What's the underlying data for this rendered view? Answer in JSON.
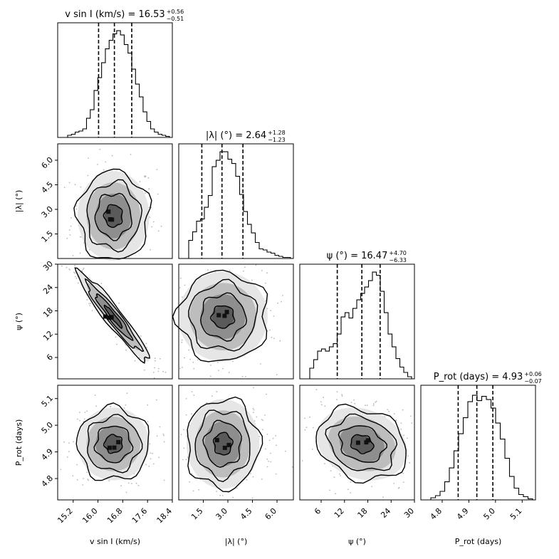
{
  "chart_data": {
    "type": "corner",
    "parameters": [
      {
        "key": "vsini",
        "label_main": "v sin I (km/s)",
        "label_html": [
          "v",
          "sin",
          "I",
          " (km/s)"
        ],
        "title_prefix": "v sin I (km/s) = ",
        "median": "16.53",
        "plus": "+0.56",
        "minus": "−0.51",
        "range": [
          14.7,
          18.4
        ],
        "ticks": [
          15.2,
          16.0,
          16.8,
          17.6,
          18.4
        ],
        "tick_labels": [
          "15.2",
          "16.0",
          "16.8",
          "17.6",
          "18.4"
        ],
        "quantiles": [
          16.02,
          16.53,
          17.09
        ],
        "histogram": [
          0.02,
          0.03,
          0.05,
          0.06,
          0.08,
          0.18,
          0.26,
          0.44,
          0.56,
          0.7,
          0.83,
          0.91,
          0.97,
          1.0,
          0.96,
          0.87,
          0.79,
          0.64,
          0.5,
          0.38,
          0.24,
          0.15,
          0.08,
          0.05,
          0.03,
          0.02,
          0.01
        ]
      },
      {
        "key": "lambda",
        "label_main": "|λ| (°)",
        "title_prefix": "|λ| (°) = ",
        "median": "2.64",
        "plus": "+1.28",
        "minus": "−1.23",
        "range": [
          0.0,
          7.0
        ],
        "ticks": [
          1.5,
          3.0,
          4.5,
          6.0
        ],
        "tick_labels": [
          "1.5",
          "3.0",
          "4.5",
          "6.0"
        ],
        "quantiles": [
          1.41,
          2.64,
          3.92
        ],
        "histogram": [
          0.17,
          0.25,
          0.35,
          0.37,
          0.48,
          0.59,
          0.86,
          0.92,
          1.0,
          1.0,
          0.93,
          0.89,
          0.77,
          0.6,
          0.44,
          0.32,
          0.24,
          0.15,
          0.09,
          0.08,
          0.06,
          0.05,
          0.03,
          0.02,
          0.01,
          0.01
        ]
      },
      {
        "key": "psi",
        "label_main": "ψ (°)",
        "title_prefix": "ψ (°) = ",
        "median": "16.47",
        "plus": "+4.70",
        "minus": "−6.33",
        "range": [
          0.5,
          30.0
        ],
        "ticks": [
          6,
          12,
          18,
          24,
          30
        ],
        "tick_labels": [
          "6",
          "12",
          "18",
          "24",
          "30"
        ],
        "quantiles": [
          10.14,
          16.47,
          21.17
        ],
        "histogram": [
          0.1,
          0.18,
          0.26,
          0.28,
          0.26,
          0.3,
          0.33,
          0.42,
          0.58,
          0.62,
          0.57,
          0.66,
          0.74,
          0.8,
          0.86,
          0.92,
          1.0,
          0.97,
          0.82,
          0.62,
          0.42,
          0.3,
          0.19,
          0.11,
          0.06,
          0.02
        ]
      },
      {
        "key": "prot",
        "label_main": "P_rot (days)",
        "title_prefix": "P_rot (days) = ",
        "median": "4.93",
        "plus": "+0.06",
        "minus": "−0.07",
        "range": [
          4.72,
          5.15
        ],
        "ticks": [
          4.8,
          4.9,
          5.0,
          5.1
        ],
        "tick_labels": [
          "4.8",
          "4.9",
          "5.0",
          "5.1"
        ],
        "quantiles": [
          4.86,
          4.93,
          4.99
        ],
        "histogram": [
          0.02,
          0.04,
          0.08,
          0.17,
          0.3,
          0.46,
          0.62,
          0.77,
          0.92,
          0.98,
          0.93,
          0.97,
          0.94,
          0.86,
          0.72,
          0.57,
          0.39,
          0.22,
          0.11,
          0.05,
          0.03,
          0.01
        ]
      }
    ],
    "pairs": [
      {
        "x": "vsini",
        "y": "lambda",
        "mean": [
          16.5,
          2.6
        ],
        "sd": [
          0.55,
          1.3
        ],
        "corr": 0.0
      },
      {
        "x": "vsini",
        "y": "psi",
        "mean": [
          16.5,
          16.5
        ],
        "sd": [
          0.55,
          5.5
        ],
        "corr": -0.95
      },
      {
        "x": "vsini",
        "y": "prot",
        "mean": [
          16.5,
          4.93
        ],
        "sd": [
          0.55,
          0.065
        ],
        "corr": 0.0
      },
      {
        "x": "lambda",
        "y": "psi",
        "mean": [
          2.7,
          16.5
        ],
        "sd": [
          1.3,
          5.5
        ],
        "corr": 0.0
      },
      {
        "x": "lambda",
        "y": "prot",
        "mean": [
          2.7,
          4.93
        ],
        "sd": [
          1.3,
          0.065
        ],
        "corr": 0.0
      },
      {
        "x": "psi",
        "y": "prot",
        "mean": [
          16.5,
          4.93
        ],
        "sd": [
          5.5,
          0.065
        ],
        "corr": -0.2
      }
    ],
    "quantile_style": "dashed",
    "contour_levels_sigma": [
      0.5,
      1.0,
      1.5,
      2.0
    ]
  }
}
